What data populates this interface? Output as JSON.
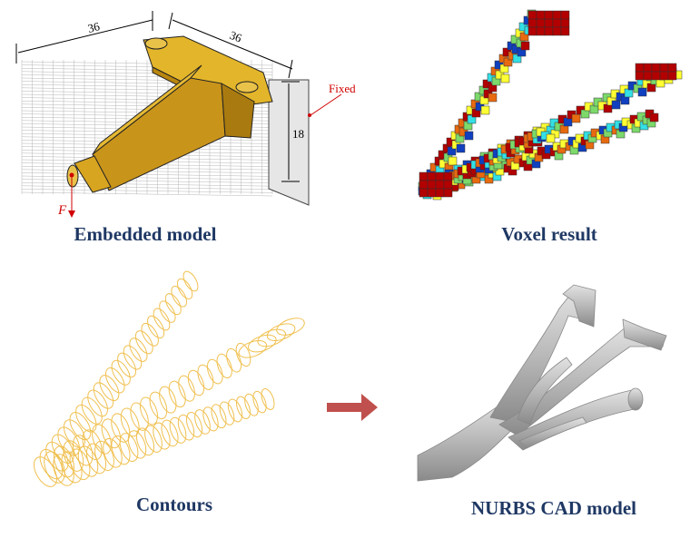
{
  "panels": {
    "embedded": {
      "caption": "Embedded model",
      "dims": {
        "width": "36",
        "depth": "36",
        "height": "18"
      },
      "fixed_label": "Fixed",
      "force_label": "F"
    },
    "voxel": {
      "caption": "Voxel result"
    },
    "contours": {
      "caption": "Contours"
    },
    "cad": {
      "caption": "NURBS CAD model"
    }
  },
  "colors": {
    "caption": "#1f3864",
    "model_gold": "#d4a017",
    "contour": "#f0c050",
    "arrow": "#c0504d",
    "annotation_red": "#d00000",
    "voxel_palette": [
      "#b30000",
      "#e86a10",
      "#ffff33",
      "#7cd96a",
      "#33e0e6",
      "#1040c0"
    ]
  }
}
